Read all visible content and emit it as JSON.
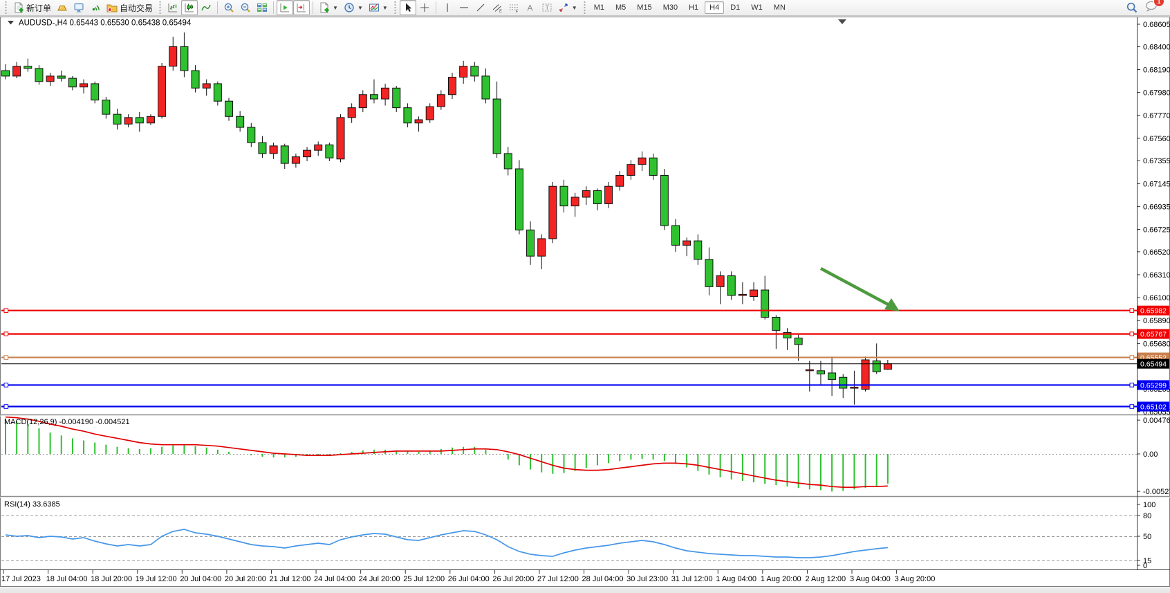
{
  "toolbar": {
    "new_order": "新订单",
    "auto_trading": "自动交易",
    "timeframes": [
      "M1",
      "M5",
      "M15",
      "M30",
      "H1",
      "H4",
      "D1",
      "W1",
      "MN"
    ],
    "active_timeframe": "H4",
    "notification_badge": "1",
    "icon_letters": {
      "channel": "E",
      "fibonacci": "F",
      "text": "A",
      "label": "T"
    }
  },
  "chart": {
    "symbol_period": "AUDUSD-,H4",
    "ohlc_line": "0.65443 0.65530 0.65438 0.65494",
    "price_axis_labels": [
      "0.68605",
      "0.68400",
      "0.68190",
      "0.67980",
      "0.67770",
      "0.67560",
      "0.67355",
      "0.67145",
      "0.66935",
      "0.66725",
      "0.66520",
      "0.66310",
      "0.66100",
      "0.65890",
      "0.65680",
      "0.65265",
      "0.65055"
    ],
    "levels": [
      {
        "price": 0.65982,
        "label": "0.65982",
        "color": "#f00000"
      },
      {
        "price": 0.65767,
        "label": "0.65767",
        "color": "#f00000"
      },
      {
        "price": 0.65552,
        "label": "0.65552",
        "color": "#c9804e"
      },
      {
        "price": 0.65299,
        "label": "0.65299",
        "color": "#0000f0"
      },
      {
        "price": 0.65102,
        "label": "0.65102",
        "color": "#0000f0"
      }
    ],
    "current_price": {
      "price": 0.65494,
      "label": "0.65494",
      "color": "#000000"
    },
    "time_axis_labels": [
      "17 Jul 2023",
      "18 Jul 04:00",
      "18 Jul 20:00",
      "19 Jul 12:00",
      "20 Jul 04:00",
      "20 Jul 20:00",
      "21 Jul 12:00",
      "24 Jul 04:00",
      "24 Jul 20:00",
      "25 Jul 12:00",
      "26 Jul 04:00",
      "26 Jul 20:00",
      "27 Jul 12:00",
      "28 Jul 04:00",
      "30 Jul 23:00",
      "31 Jul 12:00",
      "1 Aug 04:00",
      "1 Aug 20:00",
      "2 Aug 12:00",
      "3 Aug 04:00",
      "3 Aug 20:00"
    ],
    "annotation_arrow": {
      "color": "#4e9a3f"
    },
    "bull_color": "#f22424",
    "bear_color": "#2fc12f"
  },
  "chart_data": {
    "type": "candlestick",
    "symbol": "AUDUSD-",
    "period": "H4",
    "candles": [
      [
        0.6818,
        0.6824,
        0.681,
        0.6813
      ],
      [
        0.6813,
        0.6826,
        0.6811,
        0.6822
      ],
      [
        0.6822,
        0.6829,
        0.6817,
        0.682
      ],
      [
        0.682,
        0.6823,
        0.6805,
        0.6808
      ],
      [
        0.6808,
        0.6816,
        0.6804,
        0.6813
      ],
      [
        0.6813,
        0.6818,
        0.6808,
        0.6811
      ],
      [
        0.6811,
        0.6813,
        0.68,
        0.6803
      ],
      [
        0.6803,
        0.681,
        0.6797,
        0.6806
      ],
      [
        0.6806,
        0.6808,
        0.6788,
        0.6791
      ],
      [
        0.6791,
        0.6794,
        0.6774,
        0.6778
      ],
      [
        0.6778,
        0.6783,
        0.6764,
        0.6769
      ],
      [
        0.6769,
        0.6778,
        0.6766,
        0.6775
      ],
      [
        0.6775,
        0.678,
        0.6762,
        0.677
      ],
      [
        0.677,
        0.6778,
        0.6768,
        0.6776
      ],
      [
        0.6776,
        0.6825,
        0.6774,
        0.6822
      ],
      [
        0.6822,
        0.6849,
        0.6818,
        0.684
      ],
      [
        0.684,
        0.6853,
        0.6812,
        0.6818
      ],
      [
        0.6818,
        0.6823,
        0.6798,
        0.6802
      ],
      [
        0.6802,
        0.681,
        0.6795,
        0.6806
      ],
      [
        0.6806,
        0.6808,
        0.6786,
        0.679
      ],
      [
        0.679,
        0.6793,
        0.6772,
        0.6776
      ],
      [
        0.6776,
        0.6781,
        0.6762,
        0.6766
      ],
      [
        0.6766,
        0.677,
        0.6748,
        0.6752
      ],
      [
        0.6752,
        0.6758,
        0.6738,
        0.6742
      ],
      [
        0.6742,
        0.6752,
        0.6737,
        0.6749
      ],
      [
        0.6749,
        0.6751,
        0.6728,
        0.6733
      ],
      [
        0.6733,
        0.6742,
        0.6729,
        0.6739
      ],
      [
        0.6739,
        0.6748,
        0.6735,
        0.6745
      ],
      [
        0.6745,
        0.6753,
        0.674,
        0.675
      ],
      [
        0.675,
        0.6752,
        0.6735,
        0.6738
      ],
      [
        0.6737,
        0.6778,
        0.6734,
        0.6775
      ],
      [
        0.6775,
        0.6788,
        0.677,
        0.6784
      ],
      [
        0.6784,
        0.68,
        0.678,
        0.6796
      ],
      [
        0.6796,
        0.681,
        0.6788,
        0.6792
      ],
      [
        0.6792,
        0.6806,
        0.6786,
        0.6802
      ],
      [
        0.6802,
        0.6804,
        0.678,
        0.6784
      ],
      [
        0.6784,
        0.6788,
        0.6766,
        0.677
      ],
      [
        0.677,
        0.6776,
        0.6762,
        0.6773
      ],
      [
        0.6773,
        0.6788,
        0.677,
        0.6785
      ],
      [
        0.6785,
        0.68,
        0.6782,
        0.6796
      ],
      [
        0.6796,
        0.6816,
        0.6792,
        0.6812
      ],
      [
        0.6812,
        0.6827,
        0.6806,
        0.6822
      ],
      [
        0.6822,
        0.6826,
        0.6808,
        0.6813
      ],
      [
        0.6813,
        0.682,
        0.6788,
        0.6792
      ],
      [
        0.6792,
        0.6808,
        0.6738,
        0.6742
      ],
      [
        0.6742,
        0.6748,
        0.6722,
        0.6728
      ],
      [
        0.6728,
        0.6736,
        0.6668,
        0.6672
      ],
      [
        0.6672,
        0.668,
        0.664,
        0.6648
      ],
      [
        0.6648,
        0.6668,
        0.6636,
        0.6664
      ],
      [
        0.6664,
        0.6716,
        0.666,
        0.6712
      ],
      [
        0.6712,
        0.6718,
        0.6688,
        0.6694
      ],
      [
        0.6694,
        0.6706,
        0.6684,
        0.6702
      ],
      [
        0.6702,
        0.6712,
        0.6695,
        0.6708
      ],
      [
        0.6708,
        0.671,
        0.669,
        0.6696
      ],
      [
        0.6696,
        0.6716,
        0.6692,
        0.6712
      ],
      [
        0.6712,
        0.6726,
        0.6708,
        0.6722
      ],
      [
        0.6722,
        0.6736,
        0.6718,
        0.6732
      ],
      [
        0.6732,
        0.6744,
        0.6726,
        0.6738
      ],
      [
        0.6738,
        0.6742,
        0.6718,
        0.6722
      ],
      [
        0.6722,
        0.6728,
        0.6672,
        0.6676
      ],
      [
        0.6676,
        0.6682,
        0.6652,
        0.6658
      ],
      [
        0.6658,
        0.6665,
        0.6648,
        0.6662
      ],
      [
        0.6662,
        0.6668,
        0.664,
        0.6645
      ],
      [
        0.6645,
        0.6656,
        0.6612,
        0.662
      ],
      [
        0.662,
        0.6634,
        0.6604,
        0.663
      ],
      [
        0.663,
        0.6634,
        0.6608,
        0.6612
      ],
      [
        0.6612,
        0.6624,
        0.6604,
        0.6613
      ],
      [
        0.6611,
        0.6624,
        0.6607,
        0.6617
      ],
      [
        0.6617,
        0.663,
        0.659,
        0.6592
      ],
      [
        0.6592,
        0.6594,
        0.6563,
        0.658
      ],
      [
        0.6578,
        0.6582,
        0.6562,
        0.6573
      ],
      [
        0.6573,
        0.6576,
        0.6552,
        0.6567
      ],
      [
        0.6543,
        0.6552,
        0.6524,
        0.6544
      ],
      [
        0.6543,
        0.6552,
        0.653,
        0.654
      ],
      [
        0.6541,
        0.6556,
        0.652,
        0.6535
      ],
      [
        0.6537,
        0.654,
        0.6518,
        0.6527
      ],
      [
        0.6527,
        0.6543,
        0.6512,
        0.6528
      ],
      [
        0.6526,
        0.6556,
        0.6524,
        0.6553
      ],
      [
        0.6552,
        0.6568,
        0.654,
        0.6542
      ],
      [
        0.65443,
        0.6553,
        0.65438,
        0.65494
      ]
    ],
    "macd": {
      "label": "MACD(12,26,9) -0.004190 -0.004521",
      "axis_labels": [
        "0.004765",
        "0.00",
        "-0.005276"
      ],
      "values": [
        0.005,
        0.0046,
        0.0042,
        0.0036,
        0.003,
        0.0026,
        0.0022,
        0.0019,
        0.0016,
        0.0013,
        0.001,
        0.0008,
        0.0007,
        0.0008,
        0.001,
        0.0012,
        0.0013,
        0.0011,
        0.0009,
        0.0006,
        0.0003,
        0.0,
        -0.0002,
        -0.0004,
        -0.0005,
        -0.0005,
        -0.0004,
        -0.0003,
        -0.0002,
        -0.0001,
        0.0001,
        0.0003,
        0.0005,
        0.0006,
        0.0006,
        0.0005,
        0.0004,
        0.0003,
        0.0005,
        0.0007,
        0.0009,
        0.001,
        0.001,
        0.0006,
        0.0,
        -0.0008,
        -0.0016,
        -0.0022,
        -0.0026,
        -0.0028,
        -0.0027,
        -0.0024,
        -0.002,
        -0.0016,
        -0.0013,
        -0.001,
        -0.0008,
        -0.0007,
        -0.0008,
        -0.001,
        -0.0014,
        -0.0019,
        -0.0024,
        -0.0029,
        -0.0033,
        -0.0036,
        -0.0038,
        -0.004,
        -0.0042,
        -0.0044,
        -0.0046,
        -0.0048,
        -0.005,
        -0.0051,
        -0.0053,
        -0.0052,
        -0.005,
        -0.0048,
        -0.0045,
        -0.00419
      ],
      "signal": [
        0.0052,
        0.0051,
        0.0049,
        0.0046,
        0.0042,
        0.0039,
        0.0035,
        0.0032,
        0.0028,
        0.0025,
        0.0022,
        0.0019,
        0.0016,
        0.0014,
        0.0013,
        0.0013,
        0.0013,
        0.0013,
        0.0012,
        0.0011,
        0.0009,
        0.0007,
        0.0005,
        0.0003,
        0.0001,
        0.0,
        -0.0001,
        -0.0002,
        -0.0002,
        -0.0002,
        -0.0001,
        0.0,
        0.0001,
        0.0002,
        0.0003,
        0.0004,
        0.0004,
        0.0004,
        0.0004,
        0.0004,
        0.0005,
        0.0006,
        0.0007,
        0.0007,
        0.0006,
        0.0003,
        -0.0001,
        -0.0006,
        -0.0011,
        -0.0016,
        -0.002,
        -0.0022,
        -0.0023,
        -0.0023,
        -0.0022,
        -0.002,
        -0.0018,
        -0.0016,
        -0.0014,
        -0.0013,
        -0.0013,
        -0.0014,
        -0.0016,
        -0.0019,
        -0.0022,
        -0.0025,
        -0.0028,
        -0.0031,
        -0.0034,
        -0.0037,
        -0.0039,
        -0.0041,
        -0.0043,
        -0.0044,
        -0.0046,
        -0.0047,
        -0.0047,
        -0.0046,
        -0.0046,
        -0.00452
      ],
      "histogram_color": "#2fc12f",
      "signal_color": "#e00000"
    },
    "rsi": {
      "label": "RSI(14) 33.6385",
      "axis_labels": [
        "100",
        "80",
        "50",
        "15",
        "0"
      ],
      "level_lines": [
        80,
        50,
        15
      ],
      "values": [
        52,
        50,
        51,
        48,
        50,
        49,
        46,
        48,
        43,
        39,
        36,
        38,
        36,
        38,
        50,
        57,
        60,
        55,
        53,
        50,
        46,
        42,
        38,
        36,
        35,
        33,
        36,
        38,
        40,
        38,
        45,
        49,
        52,
        54,
        53,
        49,
        45,
        44,
        48,
        52,
        55,
        58,
        57,
        52,
        45,
        35,
        28,
        24,
        22,
        21,
        26,
        30,
        33,
        35,
        37,
        40,
        42,
        44,
        42,
        38,
        33,
        29,
        27,
        25,
        24,
        23,
        22,
        22,
        21,
        20,
        20,
        19,
        19,
        20,
        22,
        25,
        28,
        30,
        32,
        33.6
      ],
      "line_color": "#4596e8"
    }
  }
}
